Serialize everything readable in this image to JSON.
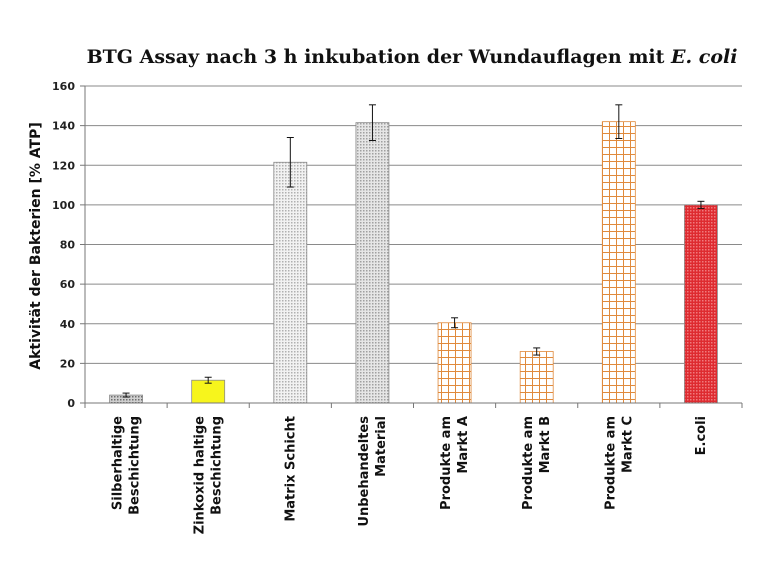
{
  "chart_data": {
    "type": "bar",
    "title": "BTG Assay nach 3 h inkubation der Wundauflagen mit",
    "title_italic": "E. coli",
    "xlabel": "",
    "ylabel": "Aktivität der Bakterien [% ATP]",
    "ylim": [
      0,
      160
    ],
    "yticks": [
      0,
      20,
      40,
      60,
      80,
      100,
      120,
      140,
      160
    ],
    "grid": true,
    "legend": "none",
    "categories": [
      [
        "Silberhaltige",
        "Beschichtung"
      ],
      [
        "Zinkoxid haltige",
        "Beschichtung"
      ],
      [
        "Matrix Schicht"
      ],
      [
        "Unbehandeltes",
        "Material"
      ],
      [
        "Produkte am",
        "Markt A"
      ],
      [
        "Produkte am",
        "Markt B"
      ],
      [
        "Produkte am",
        "Markt C"
      ],
      [
        "E.coli"
      ]
    ],
    "series": [
      {
        "values": [
          4,
          11.5,
          121.5,
          141.5,
          40.5,
          26,
          142,
          100
        ],
        "errors": [
          1,
          1.5,
          12.5,
          9,
          2.5,
          1.8,
          8.5,
          1.8
        ],
        "colors": [
          "#8c8c8c",
          "#f7f51c",
          "#c2c2c2",
          "#b8b8b8",
          "#e0924a",
          "#e0924a",
          "#e0924a",
          "#d9242a"
        ],
        "patterns": [
          "dots",
          "solid",
          "dots",
          "dots",
          "grid",
          "grid",
          "grid",
          "dots"
        ]
      }
    ]
  }
}
